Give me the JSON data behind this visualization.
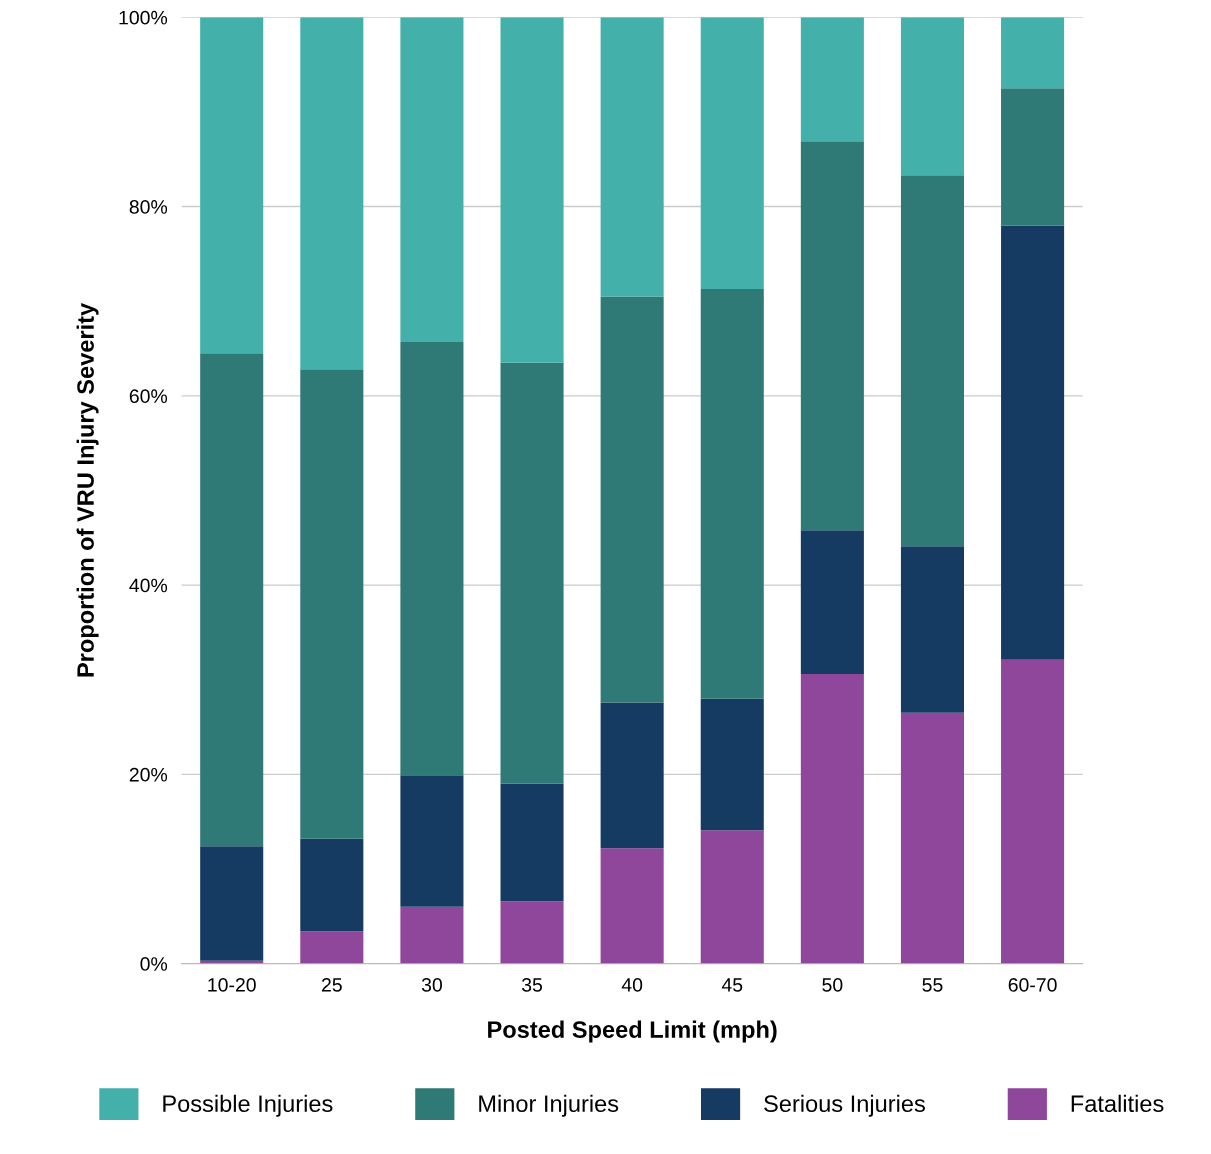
{
  "chart_data": {
    "type": "bar",
    "stacked": true,
    "xlabel": "Posted Speed Limit (mph)",
    "ylabel": "Proportion of VRU Injury Severity",
    "categories": [
      "10-20",
      "25",
      "30",
      "35",
      "40",
      "45",
      "50",
      "55",
      "60-70"
    ],
    "series": [
      {
        "name": "Fatalities",
        "color": "#8e479b",
        "values": [
          0.3,
          3.4,
          6.0,
          6.6,
          12.2,
          14.1,
          30.6,
          26.5,
          32.1
        ]
      },
      {
        "name": "Serious Injuries",
        "color": "#153b63",
        "values": [
          12.1,
          9.8,
          13.9,
          12.4,
          15.4,
          13.9,
          15.2,
          17.6,
          45.9
        ]
      },
      {
        "name": "Minor Injuries",
        "color": "#2f7a77",
        "values": [
          52.1,
          49.6,
          45.8,
          44.5,
          42.9,
          43.3,
          41.1,
          39.2,
          14.5
        ]
      },
      {
        "name": "Possible Injuries",
        "color": "#43b0aa",
        "values": [
          35.5,
          37.2,
          34.3,
          36.5,
          29.5,
          28.7,
          13.1,
          16.7,
          7.5
        ]
      }
    ],
    "ylim": [
      0,
      100
    ],
    "yticks": [
      {
        "value": 0,
        "label": "0%"
      },
      {
        "value": 20,
        "label": "20%"
      },
      {
        "value": 40,
        "label": "40%"
      },
      {
        "value": 60,
        "label": "60%"
      },
      {
        "value": 80,
        "label": "80%"
      },
      {
        "value": 100,
        "label": "100%"
      }
    ],
    "grid": "y",
    "legend": "bottom"
  }
}
